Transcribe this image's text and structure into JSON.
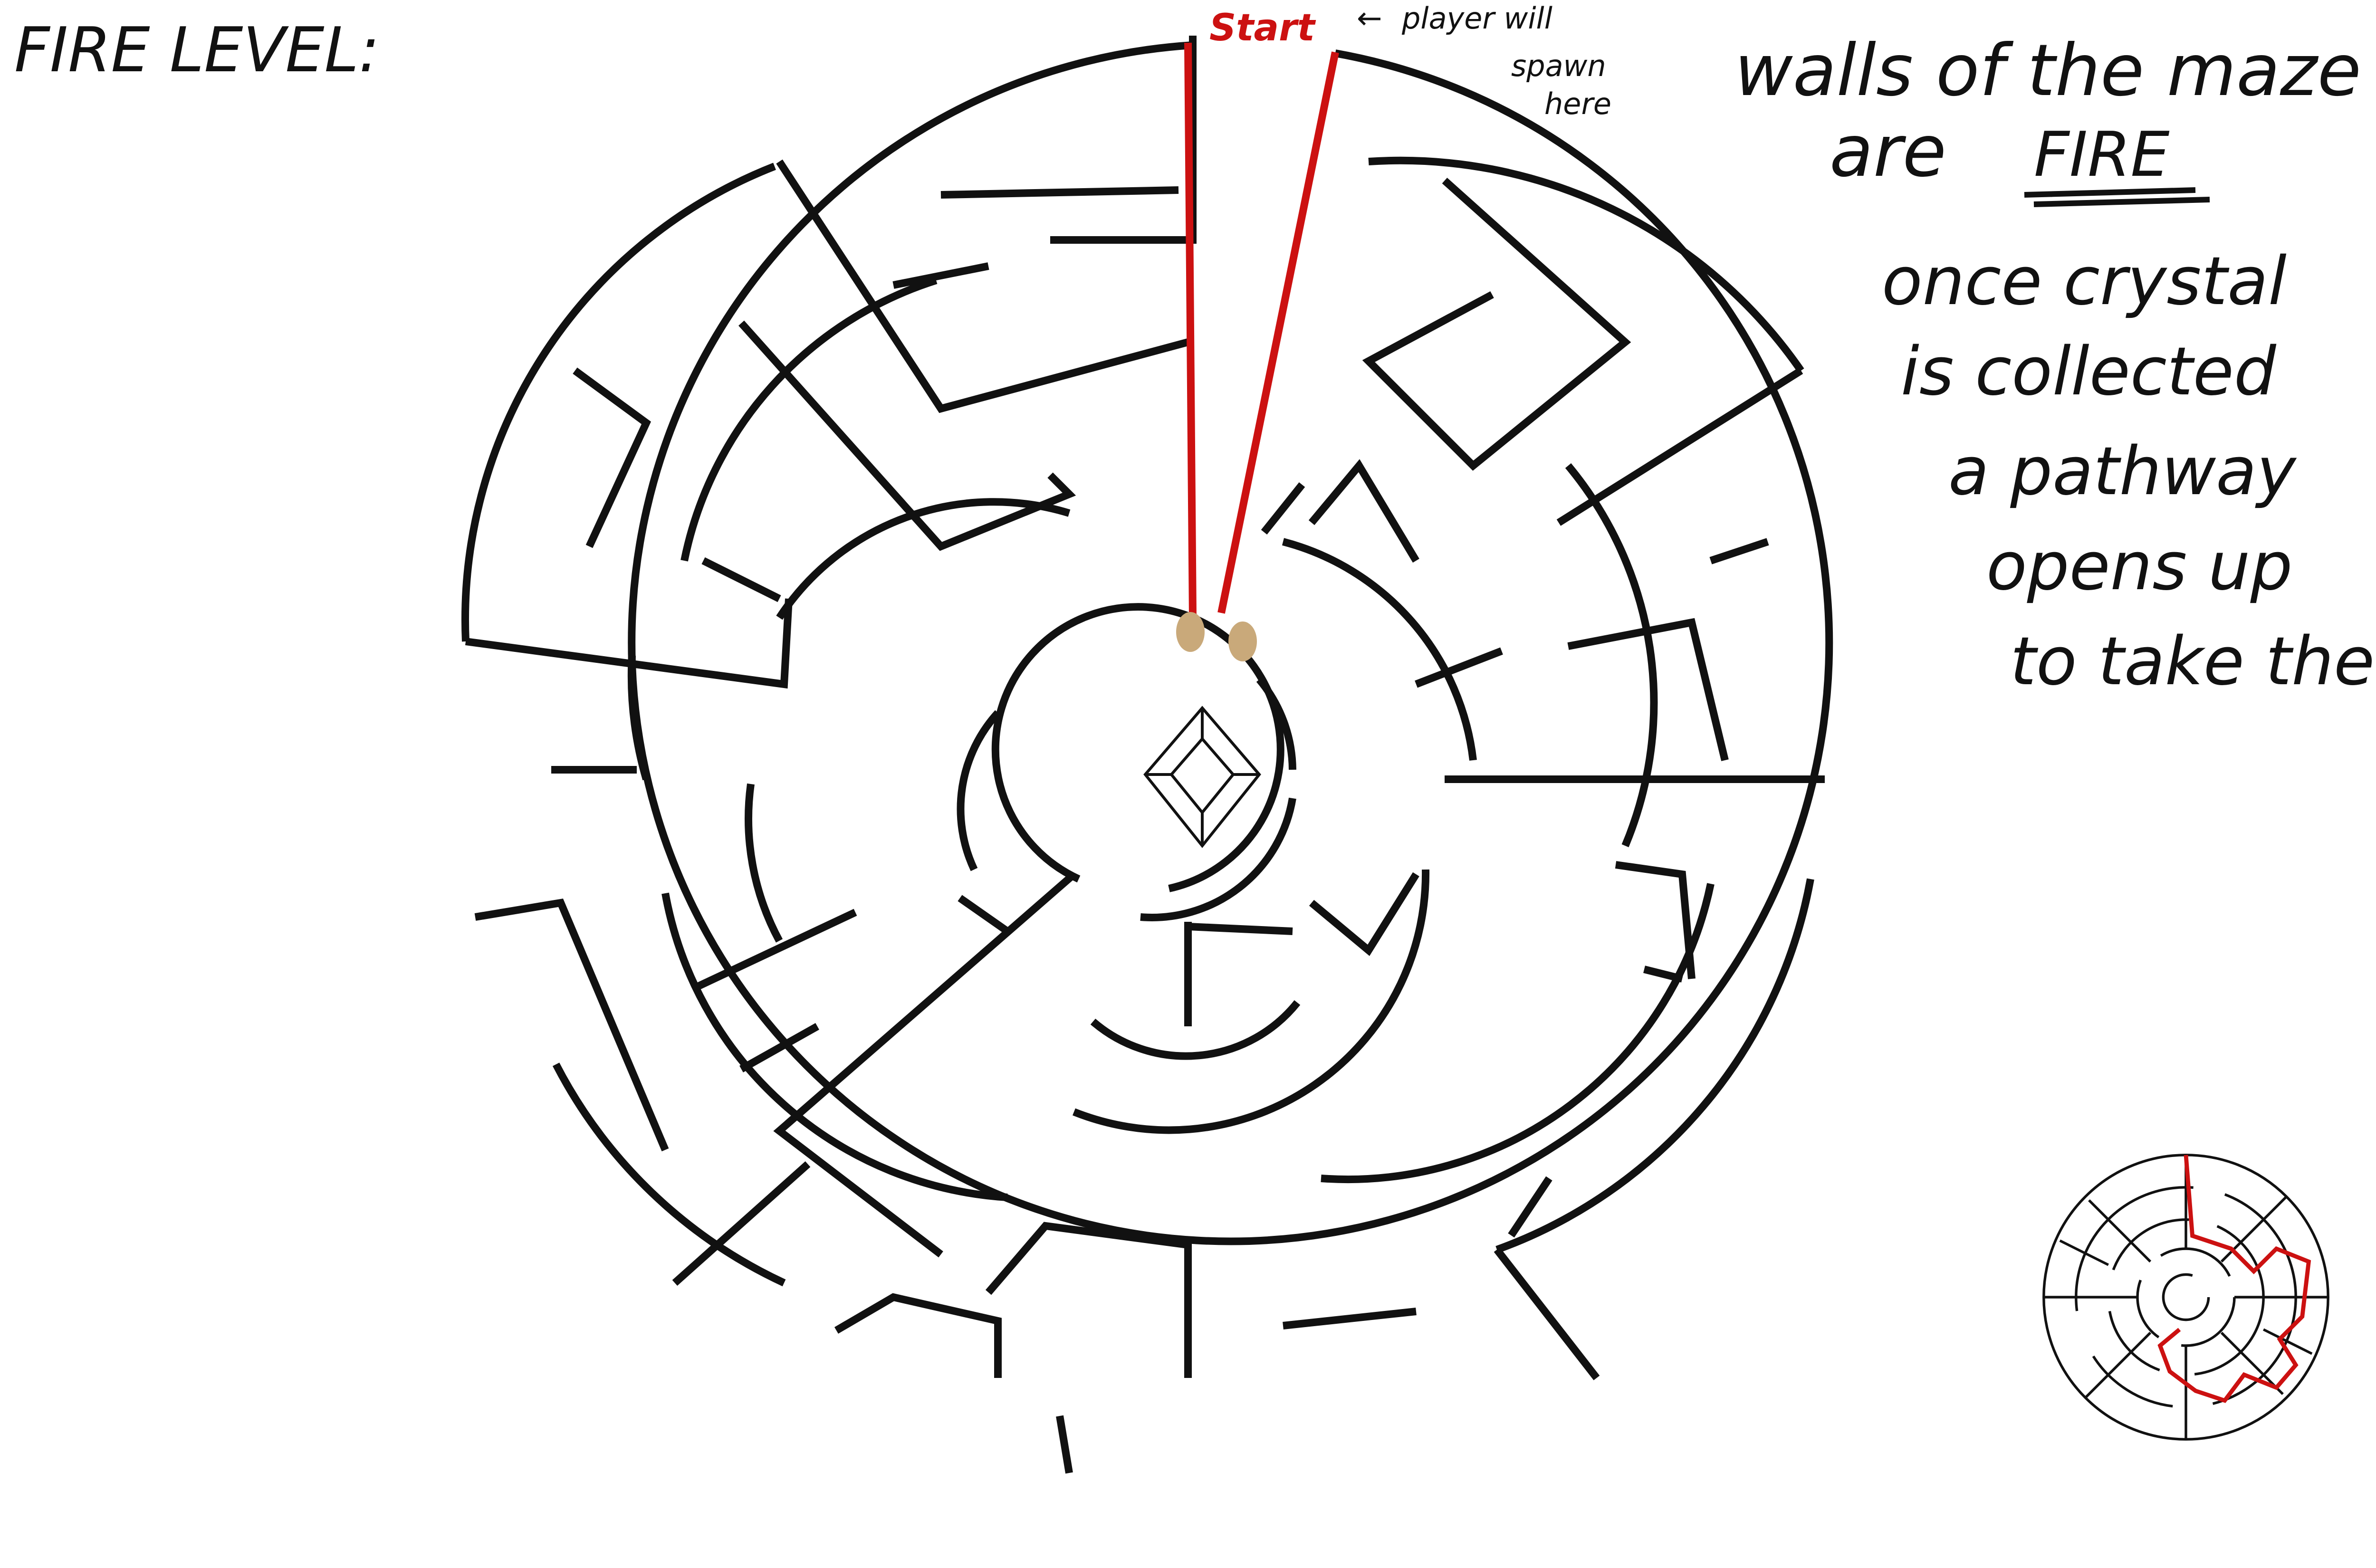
{
  "title": "FIRE LEVEL:",
  "start_label": "Start",
  "spawn_note": {
    "arrow": "←",
    "lines": [
      "player will",
      "spawn",
      "here"
    ]
  },
  "notes": {
    "walls_line1": "walls of the maze",
    "walls_line2_prefix": "are",
    "walls_emphasis": "FIRE",
    "crystal_lines": [
      "once crystal",
      "is collected",
      "a pathway",
      "opens up",
      "to take the"
    ]
  },
  "colors": {
    "ink": "#111111",
    "fire": "#cc1111",
    "gate": "#c9a97a",
    "background": "#ffffff"
  },
  "icons": {
    "center": "crystal-icon",
    "gate": "gate-markers"
  }
}
